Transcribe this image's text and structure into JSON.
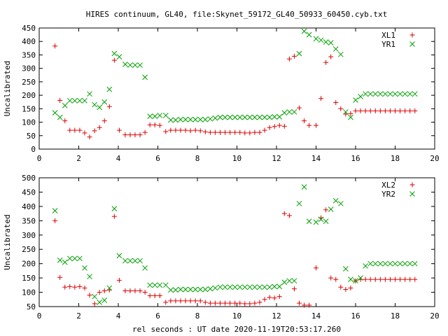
{
  "title": "HIRES continuum, GL40, file:Skynet_59172_GL40_50933_60450.cyb.txt",
  "xlabel": "rel seconds : UT date 2020-11-19T20:53:17.260",
  "colors": {
    "series1": "#dd0000",
    "series2": "#00a000"
  },
  "chart_data": [
    {
      "type": "scatter",
      "ylabel": "Uncalibrated",
      "xlim": [
        0,
        20
      ],
      "ylim": [
        0,
        450
      ],
      "xticks": [
        0,
        2,
        4,
        6,
        8,
        10,
        12,
        14,
        16,
        18,
        20
      ],
      "yticks": [
        0,
        50,
        100,
        150,
        200,
        250,
        300,
        350,
        400,
        450
      ],
      "legend": "top-right",
      "series": [
        {
          "name": "XL1",
          "marker": "plus",
          "x": [
            0.8,
            1.05,
            1.3,
            1.55,
            1.8,
            2.05,
            2.3,
            2.55,
            2.8,
            3.05,
            3.3,
            3.55,
            3.8,
            4.05,
            4.35,
            4.6,
            4.85,
            5.1,
            5.35,
            5.6,
            5.85,
            6.1,
            6.4,
            6.65,
            6.9,
            7.15,
            7.4,
            7.65,
            7.9,
            8.15,
            8.4,
            8.65,
            8.9,
            9.15,
            9.4,
            9.65,
            9.9,
            10.15,
            10.4,
            10.65,
            10.9,
            11.15,
            11.4,
            11.65,
            11.9,
            12.15,
            12.4,
            12.65,
            12.9,
            13.15,
            13.4,
            13.65,
            14.0,
            14.25,
            14.5,
            14.75,
            15.0,
            15.25,
            15.5,
            15.75,
            16.0,
            16.25,
            16.5,
            16.75,
            17.0,
            17.25,
            17.5,
            17.75,
            18.0,
            18.25,
            18.5,
            18.75,
            19.0
          ],
          "y": [
            383,
            181,
            105,
            70,
            70,
            70,
            60,
            45,
            68,
            80,
            105,
            158,
            330,
            70,
            53,
            53,
            53,
            53,
            62,
            90,
            90,
            88,
            65,
            70,
            70,
            70,
            70,
            68,
            70,
            68,
            64,
            62,
            62,
            62,
            62,
            62,
            62,
            62,
            60,
            60,
            62,
            62,
            70,
            80,
            84,
            88,
            85,
            335,
            345,
            153,
            105,
            88,
            88,
            188,
            322,
            343,
            173,
            150,
            130,
            132,
            142,
            142,
            142,
            142,
            142,
            142,
            142,
            142,
            142,
            142,
            142,
            142,
            142
          ],
          "xy": "pairs"
        },
        {
          "name": "YR1",
          "marker": "cross",
          "x": [
            0.8,
            1.05,
            1.3,
            1.55,
            1.8,
            2.05,
            2.3,
            2.55,
            2.8,
            3.05,
            3.3,
            3.55,
            3.8,
            4.05,
            4.35,
            4.6,
            4.85,
            5.1,
            5.35,
            5.6,
            5.85,
            6.1,
            6.4,
            6.65,
            6.9,
            7.15,
            7.4,
            7.65,
            7.9,
            8.15,
            8.4,
            8.65,
            8.9,
            9.15,
            9.4,
            9.65,
            9.9,
            10.15,
            10.4,
            10.65,
            10.9,
            11.15,
            11.4,
            11.65,
            11.9,
            12.15,
            12.4,
            12.65,
            12.9,
            13.15,
            13.4,
            13.65,
            14.0,
            14.25,
            14.5,
            14.75,
            15.0,
            15.25,
            15.5,
            15.75,
            16.0,
            16.25,
            16.5,
            16.75,
            17.0,
            17.25,
            17.5,
            17.75,
            18.0,
            18.25,
            18.5,
            18.75,
            19.0
          ],
          "y": [
            135,
            118,
            162,
            180,
            180,
            180,
            180,
            205,
            165,
            155,
            175,
            222,
            355,
            343,
            315,
            312,
            312,
            312,
            267,
            122,
            122,
            125,
            125,
            108,
            108,
            110,
            110,
            110,
            110,
            110,
            110,
            112,
            115,
            118,
            118,
            118,
            118,
            118,
            118,
            118,
            118,
            118,
            118,
            118,
            120,
            120,
            135,
            138,
            138,
            355,
            438,
            425,
            410,
            405,
            398,
            395,
            372,
            352,
            138,
            118,
            182,
            195,
            205,
            205,
            205,
            205,
            205,
            205,
            205,
            205,
            205,
            205,
            205
          ],
          "xy": "pairs"
        }
      ]
    },
    {
      "type": "scatter",
      "ylabel": "Uncalibrated",
      "xlim": [
        0,
        20
      ],
      "ylim": [
        50,
        500
      ],
      "xticks": [
        0,
        2,
        4,
        6,
        8,
        10,
        12,
        14,
        16,
        18,
        20
      ],
      "yticks": [
        50,
        100,
        150,
        200,
        250,
        300,
        350,
        400,
        450,
        500
      ],
      "legend": "top-right",
      "series": [
        {
          "name": "XL2",
          "marker": "plus",
          "x": [
            0.8,
            1.05,
            1.3,
            1.55,
            1.8,
            2.05,
            2.3,
            2.55,
            2.8,
            3.05,
            3.3,
            3.55,
            3.8,
            4.05,
            4.35,
            4.6,
            4.85,
            5.1,
            5.35,
            5.6,
            5.85,
            6.1,
            6.4,
            6.65,
            6.9,
            7.15,
            7.4,
            7.65,
            7.9,
            8.15,
            8.4,
            8.65,
            8.9,
            9.15,
            9.4,
            9.65,
            9.9,
            10.15,
            10.4,
            10.65,
            10.9,
            11.15,
            11.4,
            11.65,
            11.9,
            12.15,
            12.4,
            12.65,
            12.9,
            13.15,
            13.4,
            13.65,
            14.0,
            14.25,
            14.5,
            14.75,
            15.0,
            15.25,
            15.5,
            15.75,
            16.0,
            16.25,
            16.5,
            16.75,
            17.0,
            17.25,
            17.5,
            17.75,
            18.0,
            18.25,
            18.5,
            18.75,
            19.0
          ],
          "y": [
            350,
            152,
            118,
            120,
            118,
            120,
            115,
            90,
            60,
            100,
            105,
            108,
            365,
            142,
            105,
            105,
            105,
            105,
            100,
            88,
            88,
            88,
            65,
            70,
            70,
            70,
            70,
            70,
            70,
            70,
            65,
            62,
            62,
            62,
            62,
            62,
            62,
            62,
            60,
            60,
            62,
            65,
            75,
            82,
            80,
            85,
            375,
            368,
            112,
            62,
            55,
            55,
            185,
            360,
            388,
            150,
            145,
            118,
            110,
            115,
            140,
            145,
            145,
            145,
            145,
            145,
            145,
            145,
            145,
            145,
            145,
            145,
            145
          ],
          "xy": "pairs"
        },
        {
          "name": "YR2",
          "marker": "cross",
          "x": [
            0.8,
            1.05,
            1.3,
            1.55,
            1.8,
            2.05,
            2.3,
            2.55,
            2.8,
            3.05,
            3.3,
            3.55,
            3.8,
            4.05,
            4.35,
            4.6,
            4.85,
            5.1,
            5.35,
            5.6,
            5.85,
            6.1,
            6.4,
            6.65,
            6.9,
            7.15,
            7.4,
            7.65,
            7.9,
            8.15,
            8.4,
            8.65,
            8.9,
            9.15,
            9.4,
            9.65,
            9.9,
            10.15,
            10.4,
            10.65,
            10.9,
            11.15,
            11.4,
            11.65,
            11.9,
            12.15,
            12.4,
            12.65,
            12.9,
            13.15,
            13.4,
            13.65,
            14.0,
            14.25,
            14.5,
            14.75,
            15.0,
            15.25,
            15.5,
            15.75,
            16.0,
            16.25,
            16.5,
            16.75,
            17.0,
            17.25,
            17.5,
            17.75,
            18.0,
            18.25,
            18.5,
            18.75,
            19.0
          ],
          "y": [
            385,
            212,
            205,
            218,
            218,
            218,
            185,
            155,
            85,
            65,
            72,
            115,
            392,
            228,
            210,
            210,
            210,
            210,
            185,
            125,
            125,
            125,
            125,
            108,
            108,
            110,
            110,
            110,
            110,
            110,
            110,
            112,
            115,
            118,
            118,
            118,
            118,
            118,
            118,
            118,
            118,
            118,
            118,
            118,
            120,
            120,
            135,
            140,
            140,
            410,
            468,
            348,
            345,
            355,
            348,
            390,
            420,
            410,
            182,
            145,
            140,
            150,
            192,
            200,
            200,
            200,
            200,
            200,
            200,
            200,
            200,
            200,
            200
          ],
          "xy": "pairs"
        }
      ]
    }
  ]
}
